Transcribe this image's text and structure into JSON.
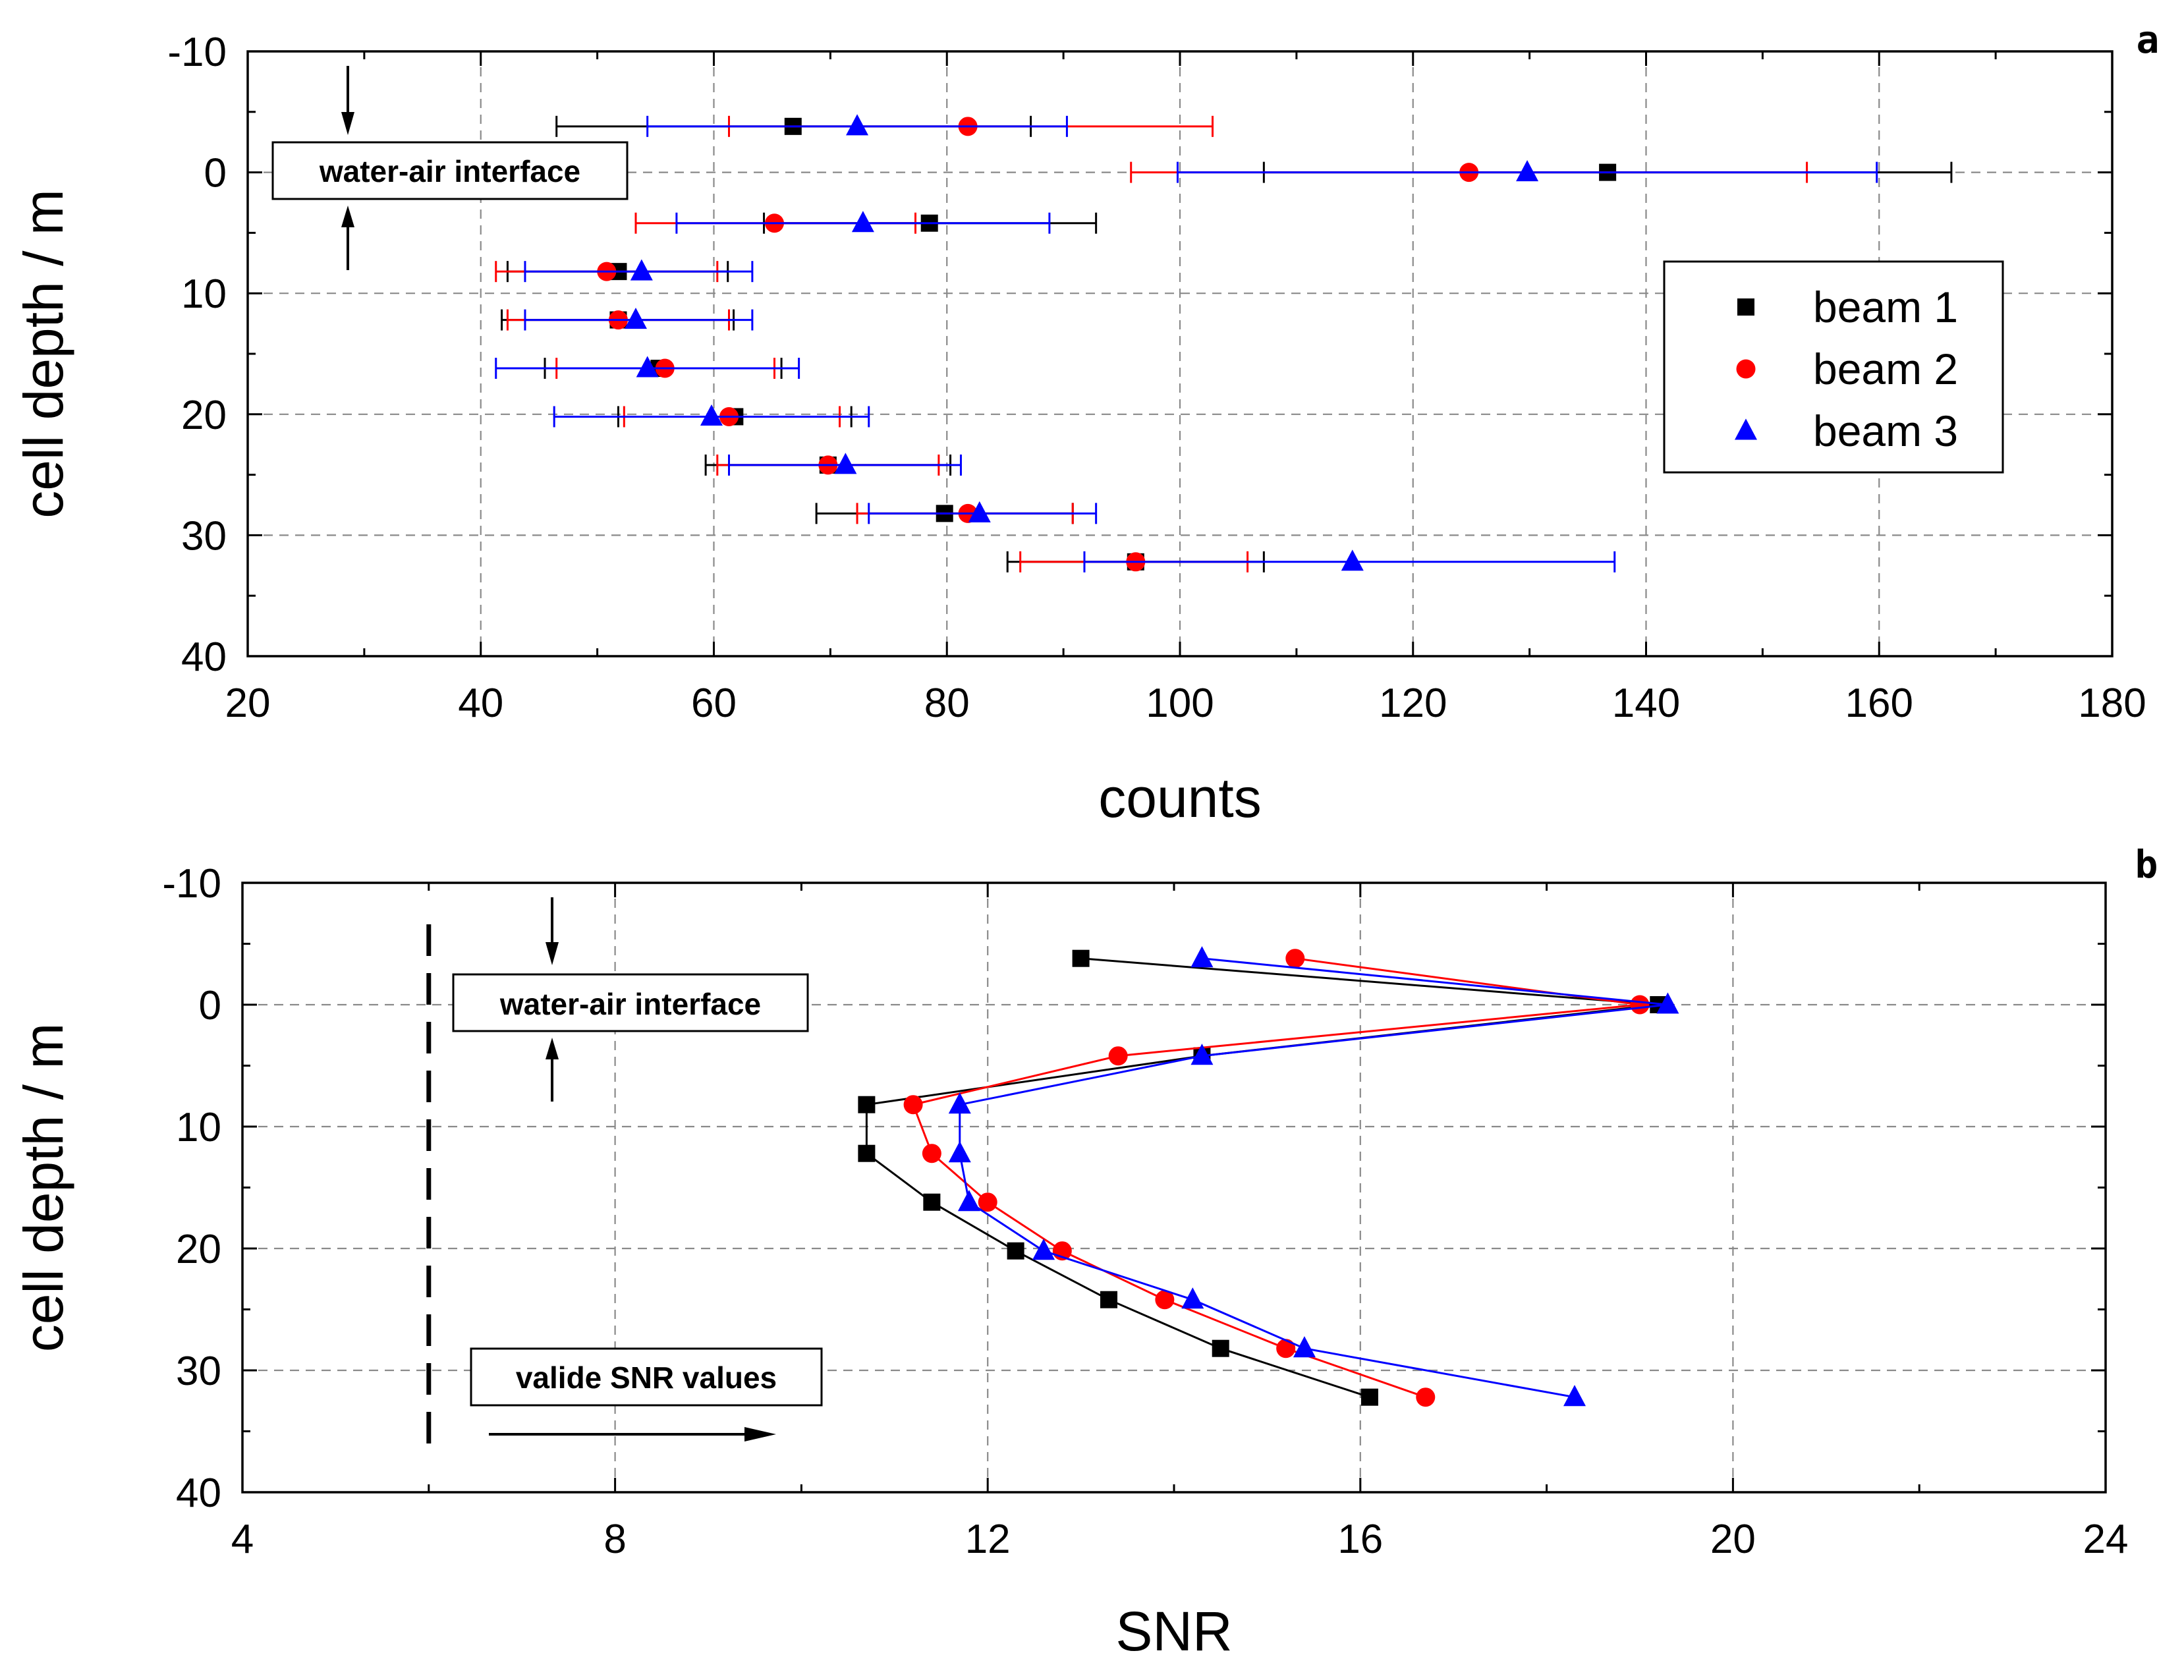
{
  "chart_data": [
    {
      "type": "scatter",
      "panel_label": "a",
      "xlabel": "counts",
      "ylabel": "cell depth / m",
      "xlim": [
        20,
        180
      ],
      "ylim": [
        -10,
        40
      ],
      "xticks": [
        "20",
        "40",
        "60",
        "80",
        "100",
        "120",
        "140",
        "160",
        "180"
      ],
      "yticks": [
        "-10",
        "0",
        "10",
        "20",
        "30",
        "40"
      ],
      "grid": true,
      "legend_position": "center-right",
      "annotation": "water-air interface",
      "series": [
        {
          "name": "beam 1",
          "color": "#000000",
          "marker": "square",
          "points": [
            {
              "depth": -3.8,
              "value": 66.8,
              "low": 46.5,
              "high": 87.2
            },
            {
              "depth": 0.0,
              "value": 136.7,
              "low": 107.2,
              "high": 166.2
            },
            {
              "depth": 4.2,
              "value": 78.5,
              "low": 64.3,
              "high": 92.8
            },
            {
              "depth": 8.2,
              "value": 51.8,
              "low": 42.3,
              "high": 61.2
            },
            {
              "depth": 12.2,
              "value": 51.8,
              "low": 41.8,
              "high": 61.7
            },
            {
              "depth": 16.2,
              "value": 55.3,
              "low": 45.5,
              "high": 65.8
            },
            {
              "depth": 20.2,
              "value": 61.8,
              "low": 51.8,
              "high": 71.8
            },
            {
              "depth": 24.2,
              "value": 69.8,
              "low": 59.3,
              "high": 80.3
            },
            {
              "depth": 28.2,
              "value": 79.8,
              "low": 68.8,
              "high": 90.8
            },
            {
              "depth": 32.2,
              "value": 96.2,
              "low": 85.2,
              "high": 107.2
            }
          ]
        },
        {
          "name": "beam 2",
          "color": "#ff0000",
          "marker": "circle",
          "points": [
            {
              "depth": -3.8,
              "value": 81.8,
              "low": 61.3,
              "high": 102.8
            },
            {
              "depth": 0.0,
              "value": 124.8,
              "low": 95.8,
              "high": 153.8
            },
            {
              "depth": 4.2,
              "value": 65.2,
              "low": 53.3,
              "high": 77.3
            },
            {
              "depth": 8.2,
              "value": 50.8,
              "low": 41.3,
              "high": 60.3
            },
            {
              "depth": 12.2,
              "value": 51.8,
              "low": 42.3,
              "high": 61.3
            },
            {
              "depth": 16.2,
              "value": 55.8,
              "low": 46.5,
              "high": 65.2
            },
            {
              "depth": 20.2,
              "value": 61.3,
              "low": 52.3,
              "high": 70.8
            },
            {
              "depth": 24.2,
              "value": 69.8,
              "low": 60.3,
              "high": 79.3
            },
            {
              "depth": 28.2,
              "value": 81.8,
              "low": 72.3,
              "high": 90.8
            },
            {
              "depth": 32.2,
              "value": 96.2,
              "low": 86.3,
              "high": 105.8
            }
          ]
        },
        {
          "name": "beam 3",
          "color": "#0000ff",
          "marker": "triangle",
          "points": [
            {
              "depth": -3.8,
              "value": 72.3,
              "low": 54.3,
              "high": 90.3
            },
            {
              "depth": 0.0,
              "value": 129.8,
              "low": 99.8,
              "high": 159.8
            },
            {
              "depth": 4.2,
              "value": 72.8,
              "low": 56.8,
              "high": 88.8
            },
            {
              "depth": 8.2,
              "value": 53.8,
              "low": 43.8,
              "high": 63.3
            },
            {
              "depth": 12.2,
              "value": 53.3,
              "low": 43.8,
              "high": 63.3
            },
            {
              "depth": 16.2,
              "value": 54.3,
              "low": 41.3,
              "high": 67.3
            },
            {
              "depth": 20.2,
              "value": 59.8,
              "low": 46.3,
              "high": 73.3
            },
            {
              "depth": 24.2,
              "value": 71.3,
              "low": 61.3,
              "high": 81.2
            },
            {
              "depth": 28.2,
              "value": 82.8,
              "low": 73.3,
              "high": 92.8
            },
            {
              "depth": 32.2,
              "value": 114.8,
              "low": 91.8,
              "high": 137.3
            }
          ]
        }
      ]
    },
    {
      "type": "line",
      "panel_label": "b",
      "xlabel": "SNR",
      "ylabel": "cell depth / m",
      "xlim": [
        4,
        24
      ],
      "ylim": [
        -10,
        40
      ],
      "xticks": [
        "4",
        "8",
        "12",
        "16",
        "20",
        "24"
      ],
      "yticks": [
        "-10",
        "0",
        "10",
        "20",
        "30",
        "40"
      ],
      "grid": true,
      "annotation": "water-air interface",
      "threshold_annotation": "valide SNR values",
      "threshold_snr": 6,
      "series": [
        {
          "name": "beam 1",
          "color": "#000000",
          "marker": "square",
          "points": [
            {
              "depth": -3.8,
              "value": 13.0
            },
            {
              "depth": 0.0,
              "value": 19.2
            },
            {
              "depth": 4.2,
              "value": 14.3
            },
            {
              "depth": 8.2,
              "value": 10.7
            },
            {
              "depth": 12.2,
              "value": 10.7
            },
            {
              "depth": 16.2,
              "value": 11.4
            },
            {
              "depth": 20.2,
              "value": 12.3
            },
            {
              "depth": 24.2,
              "value": 13.3
            },
            {
              "depth": 28.2,
              "value": 14.5
            },
            {
              "depth": 32.2,
              "value": 16.1
            }
          ]
        },
        {
          "name": "beam 2",
          "color": "#ff0000",
          "marker": "circle",
          "points": [
            {
              "depth": -3.8,
              "value": 15.3
            },
            {
              "depth": 0.0,
              "value": 19.0
            },
            {
              "depth": 4.2,
              "value": 13.4
            },
            {
              "depth": 8.2,
              "value": 11.2
            },
            {
              "depth": 12.2,
              "value": 11.4
            },
            {
              "depth": 16.2,
              "value": 12.0
            },
            {
              "depth": 20.2,
              "value": 12.8
            },
            {
              "depth": 24.2,
              "value": 13.9
            },
            {
              "depth": 28.2,
              "value": 15.2
            },
            {
              "depth": 32.2,
              "value": 16.7
            }
          ]
        },
        {
          "name": "beam 3",
          "color": "#0000ff",
          "marker": "triangle",
          "points": [
            {
              "depth": -3.8,
              "value": 14.3
            },
            {
              "depth": 0.0,
              "value": 19.3
            },
            {
              "depth": 4.2,
              "value": 14.3
            },
            {
              "depth": 8.2,
              "value": 11.7
            },
            {
              "depth": 12.2,
              "value": 11.7
            },
            {
              "depth": 16.2,
              "value": 11.8
            },
            {
              "depth": 20.2,
              "value": 12.6
            },
            {
              "depth": 24.2,
              "value": 14.2
            },
            {
              "depth": 28.2,
              "value": 15.4
            },
            {
              "depth": 32.2,
              "value": 18.3
            }
          ]
        }
      ]
    }
  ]
}
